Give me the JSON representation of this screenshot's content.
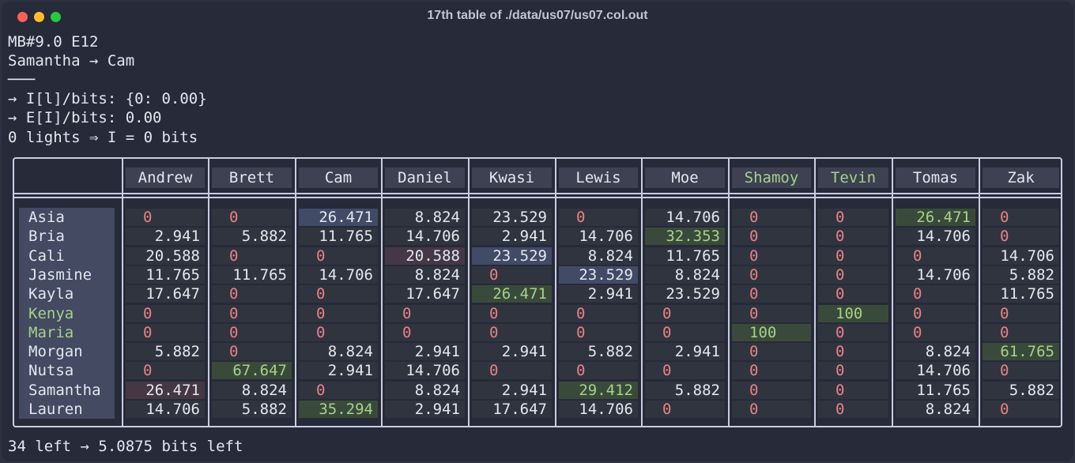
{
  "window": {
    "title": "17th table of ./data/us07/us07.col.out"
  },
  "header_lines": [
    "MB#9.0 E12",
    "Samantha → Cam",
    "───",
    "→ I[l]/bits: {0: 0.00}",
    "→ E[I]/bits: 0.00",
    "0 lights ⇒ I = 0 bits"
  ],
  "columns": [
    "Andrew",
    "Brett",
    "Cam",
    "Daniel",
    "Kwasi",
    "Lewis",
    "Moe",
    "Shamoy",
    "Tevin",
    "Tomas",
    "Zak"
  ],
  "highlight_columns": [
    "Shamoy",
    "Tevin"
  ],
  "rows": [
    {
      "name": "Asia",
      "values": [
        "0",
        "0",
        "26.471",
        "8.824",
        "23.529",
        "0",
        "14.706",
        "0",
        "0",
        "26.471",
        "0"
      ]
    },
    {
      "name": "Bria",
      "values": [
        "2.941",
        "5.882",
        "11.765",
        "14.706",
        "2.941",
        "14.706",
        "32.353",
        "0",
        "0",
        "14.706",
        "0"
      ]
    },
    {
      "name": "Cali",
      "values": [
        "20.588",
        "0",
        "0",
        "20.588",
        "23.529",
        "8.824",
        "11.765",
        "0",
        "0",
        "0",
        "14.706"
      ]
    },
    {
      "name": "Jasmine",
      "values": [
        "11.765",
        "11.765",
        "14.706",
        "8.824",
        "0",
        "23.529",
        "8.824",
        "0",
        "0",
        "14.706",
        "5.882"
      ]
    },
    {
      "name": "Kayla",
      "values": [
        "17.647",
        "0",
        "0",
        "17.647",
        "26.471",
        "2.941",
        "23.529",
        "0",
        "0",
        "0",
        "11.765"
      ]
    },
    {
      "name": "Kenya",
      "values": [
        "0",
        "0",
        "0",
        "0",
        "0",
        "0",
        "0",
        "0",
        "100",
        "0",
        "0"
      ]
    },
    {
      "name": "Maria",
      "values": [
        "0",
        "0",
        "0",
        "0",
        "0",
        "0",
        "0",
        "100",
        "0",
        "0",
        "0"
      ]
    },
    {
      "name": "Morgan",
      "values": [
        "5.882",
        "0",
        "8.824",
        "2.941",
        "2.941",
        "5.882",
        "2.941",
        "0",
        "0",
        "8.824",
        "61.765"
      ]
    },
    {
      "name": "Nutsa",
      "values": [
        "0",
        "67.647",
        "2.941",
        "14.706",
        "0",
        "0",
        "0",
        "0",
        "0",
        "14.706",
        "0"
      ]
    },
    {
      "name": "Samantha",
      "values": [
        "26.471",
        "8.824",
        "0",
        "8.824",
        "2.941",
        "29.412",
        "5.882",
        "0",
        "0",
        "11.765",
        "5.882"
      ]
    },
    {
      "name": "Lauren",
      "values": [
        "14.706",
        "5.882",
        "35.294",
        "2.941",
        "17.647",
        "14.706",
        "0",
        "0",
        "0",
        "8.824",
        "0"
      ]
    }
  ],
  "highlight_rows": [
    "Kenya",
    "Maria"
  ],
  "cell_highlights": [
    {
      "row": 0,
      "col": 2,
      "kind": "blue"
    },
    {
      "row": 0,
      "col": 9,
      "kind": "green"
    },
    {
      "row": 1,
      "col": 6,
      "kind": "green"
    },
    {
      "row": 2,
      "col": 3,
      "kind": "red"
    },
    {
      "row": 2,
      "col": 4,
      "kind": "blue"
    },
    {
      "row": 3,
      "col": 5,
      "kind": "blue"
    },
    {
      "row": 4,
      "col": 4,
      "kind": "green"
    },
    {
      "row": 5,
      "col": 8,
      "kind": "green"
    },
    {
      "row": 6,
      "col": 7,
      "kind": "green"
    },
    {
      "row": 7,
      "col": 10,
      "kind": "green"
    },
    {
      "row": 8,
      "col": 1,
      "kind": "green"
    },
    {
      "row": 9,
      "col": 0,
      "kind": "red"
    },
    {
      "row": 9,
      "col": 5,
      "kind": "green"
    },
    {
      "row": 10,
      "col": 2,
      "kind": "green"
    }
  ],
  "footer": "34 left → 5.0875 bits left",
  "colors": {
    "zero": "#e78284",
    "accent_green": "#a6d189",
    "background": "#262a39"
  }
}
